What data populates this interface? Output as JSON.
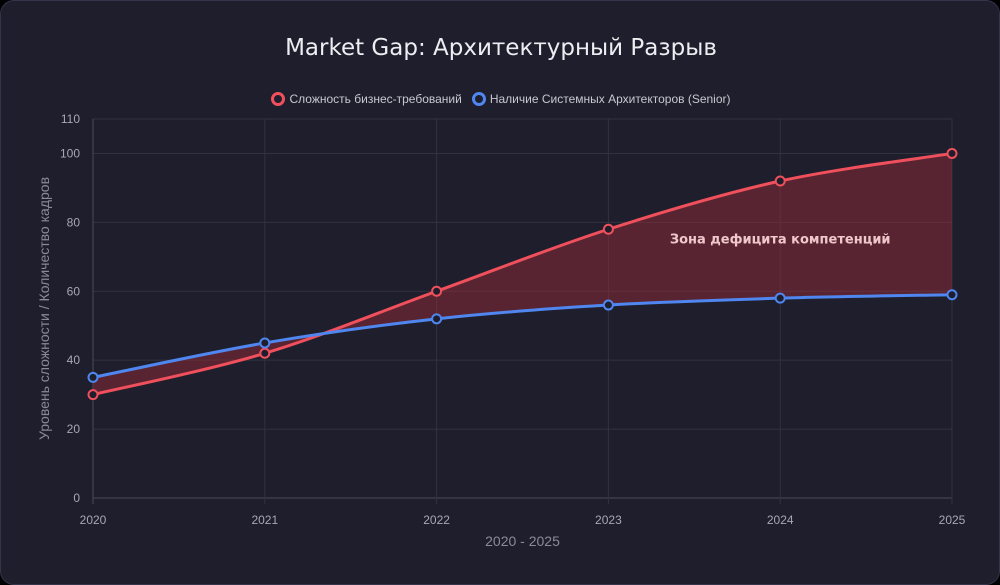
{
  "chart_data": {
    "type": "line",
    "title": "Market Gap: Архитектурный Разрыв",
    "xlabel": "2020 - 2025",
    "ylabel": "Уровень сложности / Количество кадров",
    "x": [
      "2020",
      "2021",
      "2022",
      "2023",
      "2024",
      "2025"
    ],
    "ylim": [
      0,
      110
    ],
    "yticks": [
      0,
      20,
      40,
      60,
      80,
      100,
      110
    ],
    "grid": true,
    "legend_position": "top",
    "series": [
      {
        "name": "Сложность бизнес-требований",
        "values": [
          30,
          42,
          60,
          78,
          92,
          100
        ],
        "color": "#f0505c"
      },
      {
        "name": "Наличие Системных Архитекторов (Senior)",
        "values": [
          35,
          45,
          52,
          56,
          58,
          59
        ],
        "color": "#4f86f0"
      }
    ],
    "fill_between": {
      "color": "#8b2a36"
    },
    "annotations": [
      {
        "text": "Зона дефицита компетенций",
        "x": "2024",
        "y": 75
      }
    ]
  }
}
